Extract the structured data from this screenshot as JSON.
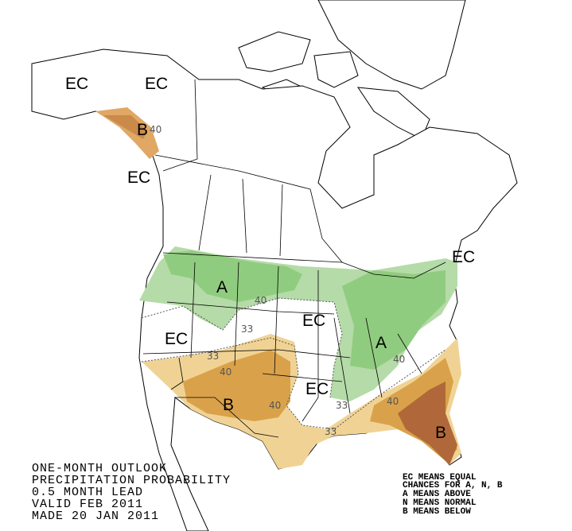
{
  "title_lines": [
    "ONE-MONTH OUTLOOK",
    "PRECIPITATION PROBABILITY",
    "0.5 MONTH LEAD",
    "VALID FEB 2011",
    "MADE 20 JAN 2011"
  ],
  "legend_lines": [
    "EC MEANS EQUAL",
    "CHANCES FOR A, N, B",
    "A MEANS ABOVE",
    "N MEANS NORMAL",
    "B MEANS BELOW"
  ],
  "map_labels": [
    {
      "text": "EC"
    },
    {
      "text": "EC"
    },
    {
      "text": "B"
    },
    {
      "text": "40"
    },
    {
      "text": "EC"
    },
    {
      "text": "EC"
    },
    {
      "text": "A"
    },
    {
      "text": "40"
    },
    {
      "text": "EC"
    },
    {
      "text": "33"
    },
    {
      "text": "EC"
    },
    {
      "text": "A"
    },
    {
      "text": "33"
    },
    {
      "text": "40"
    },
    {
      "text": "40"
    },
    {
      "text": "EC"
    },
    {
      "text": "B"
    },
    {
      "text": "40"
    },
    {
      "text": "33"
    },
    {
      "text": "40"
    },
    {
      "text": "33"
    },
    {
      "text": "B"
    }
  ]
}
